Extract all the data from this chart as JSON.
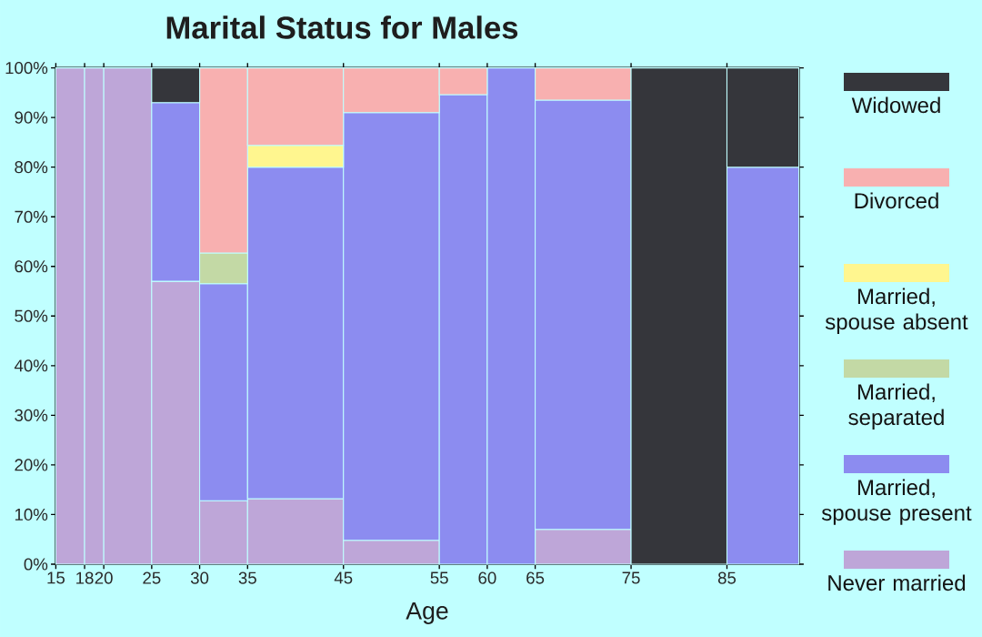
{
  "chart_data": {
    "type": "bar",
    "title": "Marital Status for Males",
    "xlabel": "Age",
    "stacked": true,
    "legend": "right",
    "x": [
      16.5,
      19,
      22.5,
      27.5,
      32.5,
      40,
      50,
      57.5,
      62.5,
      70,
      80,
      88.75
    ],
    "xlim": [
      15,
      92.5
    ],
    "xticks": [
      15,
      18,
      20,
      25,
      30,
      35,
      45,
      55,
      60,
      65,
      75,
      85
    ],
    "ylim": [
      0,
      100
    ],
    "yticks": [
      {
        "value": 0,
        "label": "0%"
      },
      {
        "value": 10,
        "label": "10%"
      },
      {
        "value": 20,
        "label": "20%"
      },
      {
        "value": 30,
        "label": "30%"
      },
      {
        "value": 40,
        "label": "40%"
      },
      {
        "value": 50,
        "label": "50%"
      },
      {
        "value": 60,
        "label": "60%"
      },
      {
        "value": 70,
        "label": "70%"
      },
      {
        "value": 80,
        "label": "80%"
      },
      {
        "value": 90,
        "label": "90%"
      },
      {
        "value": 100,
        "label": "100%"
      }
    ],
    "series": [
      {
        "name": "Never married",
        "color": "#bea6d8",
        "values": [
          100,
          100,
          100,
          57,
          12.8,
          13.2,
          4.8,
          0,
          0,
          7.0,
          0,
          0
        ]
      },
      {
        "name": "Married, spouse present",
        "color": "#8c8cf0",
        "values": [
          0,
          0,
          0,
          36,
          43.7,
          66.8,
          86.2,
          94.6,
          100,
          86.5,
          0,
          80
        ]
      },
      {
        "name": "Married, separated",
        "color": "#c3d9a5",
        "values": [
          0,
          0,
          0,
          0,
          6.2,
          0,
          0,
          0,
          0,
          0,
          0,
          0
        ]
      },
      {
        "name": "Married, spouse absent",
        "color": "#fff68f",
        "values": [
          0,
          0,
          0,
          0,
          0,
          4.4,
          0,
          0,
          0,
          0,
          0,
          0
        ]
      },
      {
        "name": "Divorced",
        "color": "#f8b0b0",
        "values": [
          0,
          0,
          0,
          0,
          37.3,
          15.6,
          9.0,
          5.4,
          0,
          6.5,
          0,
          0
        ]
      },
      {
        "name": "Widowed",
        "color": "#35363b",
        "values": [
          0,
          0,
          0,
          7,
          0,
          0,
          0,
          0,
          0,
          0,
          100,
          20
        ]
      }
    ]
  }
}
